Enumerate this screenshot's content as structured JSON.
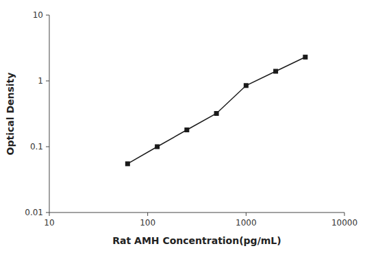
{
  "chart_data": {
    "type": "line",
    "x": [
      62.5,
      125,
      250,
      500,
      1000,
      2000,
      4000
    ],
    "values": [
      0.055,
      0.1,
      0.18,
      0.32,
      0.85,
      1.4,
      2.3
    ],
    "x_label": "Rat AMH Concentration(pg/mL)",
    "y_label": "Optical Density",
    "xlim": [
      10,
      10000
    ],
    "ylim": [
      0.01,
      10
    ],
    "xticks": [
      10,
      100,
      1000,
      10000
    ],
    "yticks": [
      0.01,
      0.1,
      1,
      10
    ],
    "log": true,
    "grid": false,
    "marker": "square",
    "color": "#1a1a1a"
  }
}
